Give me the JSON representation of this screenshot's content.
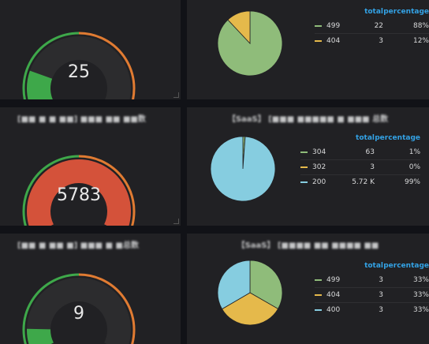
{
  "rows": [
    {
      "gauge": {
        "title": "",
        "value": "25",
        "fill": 0.2,
        "fill_color": "#3ea84a"
      },
      "pie": {
        "title": "",
        "slices": [
          {
            "label": "499",
            "total": "22",
            "percentage": "88%",
            "value": 88,
            "color": "#8fbc7a"
          },
          {
            "label": "404",
            "total": "3",
            "percentage": "12%",
            "value": 12,
            "color": "#e5b94b"
          }
        ]
      }
    },
    {
      "gauge": {
        "title": "[■■ ■ ■ ■■] ■■■ ■■ ■■数",
        "value": "5783",
        "fill": 1.0,
        "fill_color": "#d4523a"
      },
      "pie": {
        "title": "【SaaS】 [■■■ ■■■■■ ■ ■■■ 总数",
        "slices": [
          {
            "label": "304",
            "total": "63",
            "percentage": "1%",
            "value": 63,
            "color": "#8fbc7a"
          },
          {
            "label": "302",
            "total": "3",
            "percentage": "0%",
            "value": 3,
            "color": "#e5b94b"
          },
          {
            "label": "200",
            "total": "5.72 K",
            "percentage": "99%",
            "value": 5720,
            "color": "#86cde0"
          }
        ]
      }
    },
    {
      "gauge": {
        "title": "[■■ ■ ■■ ■] ■■■ ■ ■总数",
        "value": "9",
        "fill": 0.12,
        "fill_color": "#3ea84a"
      },
      "pie": {
        "title": "【SaaS】 [■■■■ ■■ ■■■■ ■■",
        "slices": [
          {
            "label": "499",
            "total": "3",
            "percentage": "33%",
            "value": 33.3,
            "color": "#8fbc7a"
          },
          {
            "label": "404",
            "total": "3",
            "percentage": "33%",
            "value": 33.3,
            "color": "#e5b94b"
          },
          {
            "label": "400",
            "total": "3",
            "percentage": "33%",
            "value": 33.4,
            "color": "#86cde0"
          }
        ]
      }
    }
  ],
  "legend_headers": {
    "total": "total",
    "percentage": "percentage"
  },
  "colors": {
    "outer_green": "#3ea84a",
    "outer_orange": "#e07b32",
    "track": "#2c2c2e"
  }
}
